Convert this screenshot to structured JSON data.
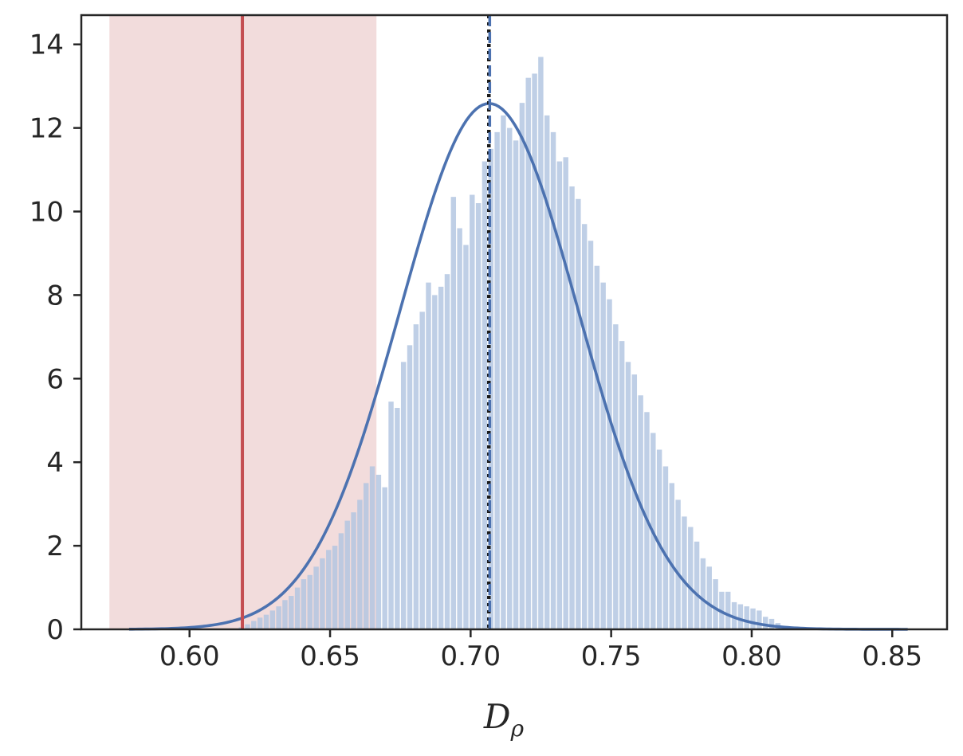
{
  "chart_data": {
    "type": "bar",
    "subtype": "histogram-with-density",
    "title": "",
    "xlabel": "D",
    "xlabel_subscript": "ρ",
    "ylabel": "",
    "xlim": [
      0.5615,
      0.8695
    ],
    "ylim": [
      0,
      14.7
    ],
    "grid": false,
    "x_ticks": [
      "0.60",
      "0.65",
      "0.70",
      "0.75",
      "0.80",
      "0.85"
    ],
    "x_tick_values": [
      0.6,
      0.65,
      0.7,
      0.75,
      0.8,
      0.85
    ],
    "y_ticks": [
      "0",
      "2",
      "4",
      "6",
      "8",
      "10",
      "12",
      "14"
    ],
    "y_tick_values": [
      0,
      2,
      4,
      6,
      8,
      10,
      12,
      14
    ],
    "histogram": {
      "color": "#b1c4e0",
      "bin_start": 0.6175,
      "bin_width": 0.00222,
      "values": [
        0.05,
        0.12,
        0.2,
        0.28,
        0.35,
        0.45,
        0.55,
        0.7,
        0.8,
        1.0,
        1.2,
        1.3,
        1.5,
        1.7,
        1.9,
        2.0,
        2.3,
        2.6,
        2.8,
        3.1,
        3.5,
        3.9,
        3.7,
        3.4,
        5.45,
        5.3,
        6.4,
        6.8,
        7.3,
        7.6,
        8.3,
        8.0,
        8.2,
        8.5,
        10.35,
        9.6,
        9.2,
        10.4,
        10.2,
        11.2,
        11.5,
        11.9,
        12.3,
        12.0,
        11.7,
        12.6,
        13.2,
        13.3,
        13.7,
        12.3,
        11.9,
        11.2,
        11.3,
        10.6,
        10.3,
        9.7,
        9.3,
        8.7,
        8.3,
        7.9,
        7.3,
        6.9,
        6.4,
        6.1,
        5.6,
        5.2,
        4.7,
        4.3,
        3.9,
        3.5,
        3.1,
        2.7,
        2.45,
        2.1,
        1.7,
        1.5,
        1.2,
        0.9,
        0.9,
        0.65,
        0.6,
        0.55,
        0.5,
        0.45,
        0.3,
        0.25,
        0.15,
        0.05
      ]
    },
    "density_curve": {
      "color": "#4c72b0",
      "mean": 0.7066,
      "sd": 0.0317,
      "x_start": 0.5785,
      "x_end": 0.8555
    },
    "shaded_region": {
      "x_start": 0.5715,
      "x_end": 0.6665,
      "color": "#f2dcdc"
    },
    "vlines": [
      {
        "x": 0.6188,
        "color": "#c44e52",
        "style": "solid"
      },
      {
        "x": 0.7065,
        "color": "#1a1a1a",
        "style": "dotted"
      },
      {
        "x": 0.7068,
        "color": "#4c72b0",
        "style": "dashed"
      }
    ]
  }
}
